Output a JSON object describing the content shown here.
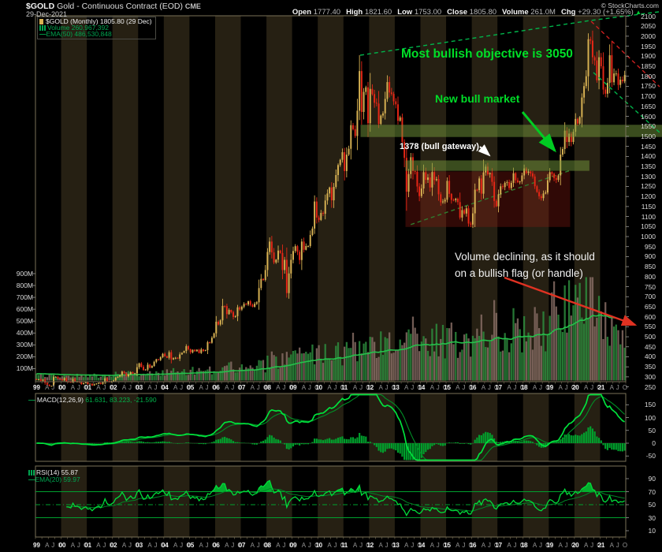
{
  "header": {
    "symbol": "$GOLD",
    "name": "Gold - Continuous Contract (EOD)",
    "exchange": "CME",
    "date": "29-Dec-2021",
    "copyright": "© StockCharts.com",
    "quote": [
      {
        "key": "open",
        "label": "Open",
        "value": "1777.40"
      },
      {
        "key": "high",
        "label": "High",
        "value": "1821.60"
      },
      {
        "key": "low",
        "label": "Low",
        "value": "1753.00"
      },
      {
        "key": "close",
        "label": "Close",
        "value": "1805.80"
      },
      {
        "key": "volume",
        "label": "Volume",
        "value": "261.0M"
      },
      {
        "key": "chg",
        "label": "Chg",
        "value": "+29.30 (+1.65%)"
      }
    ],
    "chg_direction_icon": "▲"
  },
  "legend": {
    "price": "$GOLD (Monthly) 1805.80 (29 Dec)",
    "volume": "Volume 260,967,392",
    "ema": "EMA(50) 486,530,848"
  },
  "annotations": {
    "objective": "Most bullish objective is 3050",
    "new_bull": "New bull market",
    "gateway": "1378 (bull gateway)",
    "volume_note_line1": "Volume declining, as it should",
    "volume_note_line2": "on a bullish flag (or handle)"
  },
  "macd_panel": {
    "label": "MACD(12,26,9)",
    "values": "61.631, 83.223, -21.590",
    "axis_ticks": [
      150,
      100,
      50,
      0,
      -50
    ]
  },
  "rsi_panel": {
    "label": "RSI(14) 55.87",
    "ema_label": "EMA(20) 59.97",
    "axis_ticks": [
      90,
      70,
      50,
      30,
      10
    ],
    "overbought": 70,
    "midline": 50,
    "oversold": 30
  },
  "axes": {
    "price_ticks": [
      2100,
      2050,
      2000,
      1950,
      1900,
      1850,
      1800,
      1750,
      1700,
      1650,
      1600,
      1550,
      1500,
      1450,
      1400,
      1350,
      1300,
      1250,
      1200,
      1150,
      1100,
      1050,
      1000,
      950,
      900,
      850,
      800,
      750,
      700,
      650,
      600,
      550,
      500,
      450,
      400,
      350,
      300,
      250
    ],
    "highlighted_price_tick": 1550,
    "volume_ticks_millions": [
      900,
      800,
      700,
      600,
      500,
      400,
      300,
      200,
      100
    ],
    "years": [
      "99",
      "00",
      "01",
      "02",
      "03",
      "04",
      "05",
      "06",
      "07",
      "08",
      "09",
      "10",
      "11",
      "12",
      "13",
      "14",
      "15",
      "16",
      "17",
      "18",
      "19",
      "20",
      "21"
    ],
    "month_letters": [
      "A",
      "J",
      "O"
    ]
  },
  "colors": {
    "candle_up": "#d8b253",
    "candle_down": "#e62716",
    "volume_up": "#2e9140",
    "volume_down": "#8a6f66",
    "volume_ema_line": "#25c14b",
    "indicator_line": "#00e23c",
    "indicator_signal": "#008f26",
    "indicator_hist": "#00a82e",
    "annotation_green": "#00dd28",
    "annotation_red": "#e03222",
    "band_fill": "rgba(116,152,60,0.5)",
    "box_fill": "rgba(150,28,18,0.32)",
    "stripe": "#262013",
    "panel_border": "#7a7258"
  },
  "chart_data": {
    "type": "candlestick",
    "timeframe": "monthly",
    "start_year": 1999,
    "end_year": 2021,
    "price_axis": {
      "min": 250,
      "max": 2100,
      "step": 50
    },
    "volume_axis_millions": {
      "min": 100,
      "max": 900,
      "step": 100
    },
    "monthly_closes_by_year": [
      [
        285,
        287,
        280,
        286,
        270,
        261,
        255,
        255,
        299,
        300,
        291,
        288
      ],
      [
        283,
        294,
        276,
        275,
        272,
        289,
        276,
        277,
        273,
        264,
        269,
        272
      ],
      [
        264,
        266,
        257,
        263,
        267,
        270,
        265,
        273,
        293,
        279,
        274,
        277
      ],
      [
        282,
        296,
        301,
        308,
        326,
        318,
        303,
        312,
        323,
        316,
        318,
        348
      ],
      [
        367,
        350,
        334,
        336,
        361,
        346,
        354,
        375,
        388,
        384,
        398,
        415
      ],
      [
        402,
        395,
        423,
        387,
        393,
        395,
        391,
        412,
        420,
        429,
        453,
        438
      ],
      [
        422,
        435,
        428,
        435,
        419,
        437,
        429,
        433,
        473,
        470,
        495,
        517
      ],
      [
        575,
        561,
        582,
        654,
        653,
        613,
        634,
        623,
        599,
        603,
        647,
        636
      ],
      [
        650,
        664,
        661,
        677,
        659,
        650,
        665,
        672,
        743,
        789,
        783,
        833
      ],
      [
        923,
        975,
        921,
        871,
        885,
        930,
        918,
        833,
        884,
        718,
        816,
        884
      ],
      [
        928,
        952,
        924,
        883,
        975,
        934,
        953,
        953,
        1008,
        1040,
        1175,
        1095
      ],
      [
        1083,
        1118,
        1114,
        1180,
        1215,
        1245,
        1181,
        1248,
        1307,
        1357,
        1383,
        1421
      ],
      [
        1327,
        1409,
        1438,
        1556,
        1536,
        1502,
        1628,
        1826,
        1622,
        1722,
        1745,
        1566
      ],
      [
        1737,
        1711,
        1668,
        1664,
        1562,
        1604,
        1615,
        1687,
        1771,
        1719,
        1712,
        1675
      ],
      [
        1660,
        1578,
        1595,
        1472,
        1393,
        1224,
        1312,
        1396,
        1327,
        1323,
        1250,
        1202
      ],
      [
        1240,
        1321,
        1283,
        1295,
        1245,
        1322,
        1282,
        1287,
        1211,
        1171,
        1175,
        1184
      ],
      [
        1278,
        1213,
        1183,
        1182,
        1189,
        1172,
        1095,
        1132,
        1115,
        1141,
        1065,
        1060
      ],
      [
        1116,
        1234,
        1232,
        1290,
        1214,
        1320,
        1349,
        1311,
        1317,
        1273,
        1178,
        1151
      ],
      [
        1211,
        1251,
        1247,
        1268,
        1272,
        1242,
        1268,
        1316,
        1281,
        1271,
        1275,
        1305
      ],
      [
        1340,
        1318,
        1325,
        1315,
        1300,
        1251,
        1223,
        1201,
        1192,
        1215,
        1220,
        1281
      ],
      [
        1321,
        1313,
        1292,
        1283,
        1305,
        1409,
        1437,
        1529,
        1472,
        1514,
        1472,
        1523
      ],
      [
        1587,
        1564,
        1596,
        1694,
        1751,
        1800,
        1985,
        1978,
        1895,
        1879,
        1780,
        1895
      ],
      [
        1850,
        1734,
        1713,
        1767,
        1905,
        1770,
        1814,
        1814,
        1757,
        1783,
        1775,
        1806
      ]
    ],
    "yearly_avg_volume_millions": [
      45,
      42,
      40,
      55,
      65,
      75,
      85,
      110,
      120,
      170,
      210,
      230,
      290,
      310,
      380,
      330,
      340,
      480,
      420,
      430,
      600,
      680,
      480
    ],
    "indicators": [
      {
        "name": "MACD",
        "params": [
          12,
          26,
          9
        ]
      },
      {
        "name": "RSI",
        "params": [
          14
        ]
      },
      {
        "name": "EMA of RSI",
        "params": [
          20
        ]
      },
      {
        "name": "Volume EMA",
        "params": [
          50
        ]
      }
    ],
    "overlays": {
      "upper_band": {
        "price_from": 1497,
        "price_to": 1558,
        "start": "2011-09",
        "end": "right-edge"
      },
      "gateway_band": {
        "price_from": 1328,
        "price_to": 1380,
        "start": "2013-06",
        "end": "2020-08"
      },
      "base_box": {
        "price_from": 1048,
        "price_to": 1325,
        "start": "2013-06",
        "end": "2019-11"
      },
      "box_trendline": {
        "kind": "dashed-green",
        "from_price": 1060,
        "from": "2013-07",
        "to_price": 1330,
        "to": "2019-11"
      },
      "wedge_line": {
        "kind": "dashed-green",
        "desc": "2011 high to 2020 high, extended"
      },
      "flag_upper": {
        "kind": "dashed-red",
        "desc": "down from 2020 high"
      },
      "flag_lower": {
        "kind": "dashed-green",
        "desc": "flag support"
      }
    }
  }
}
